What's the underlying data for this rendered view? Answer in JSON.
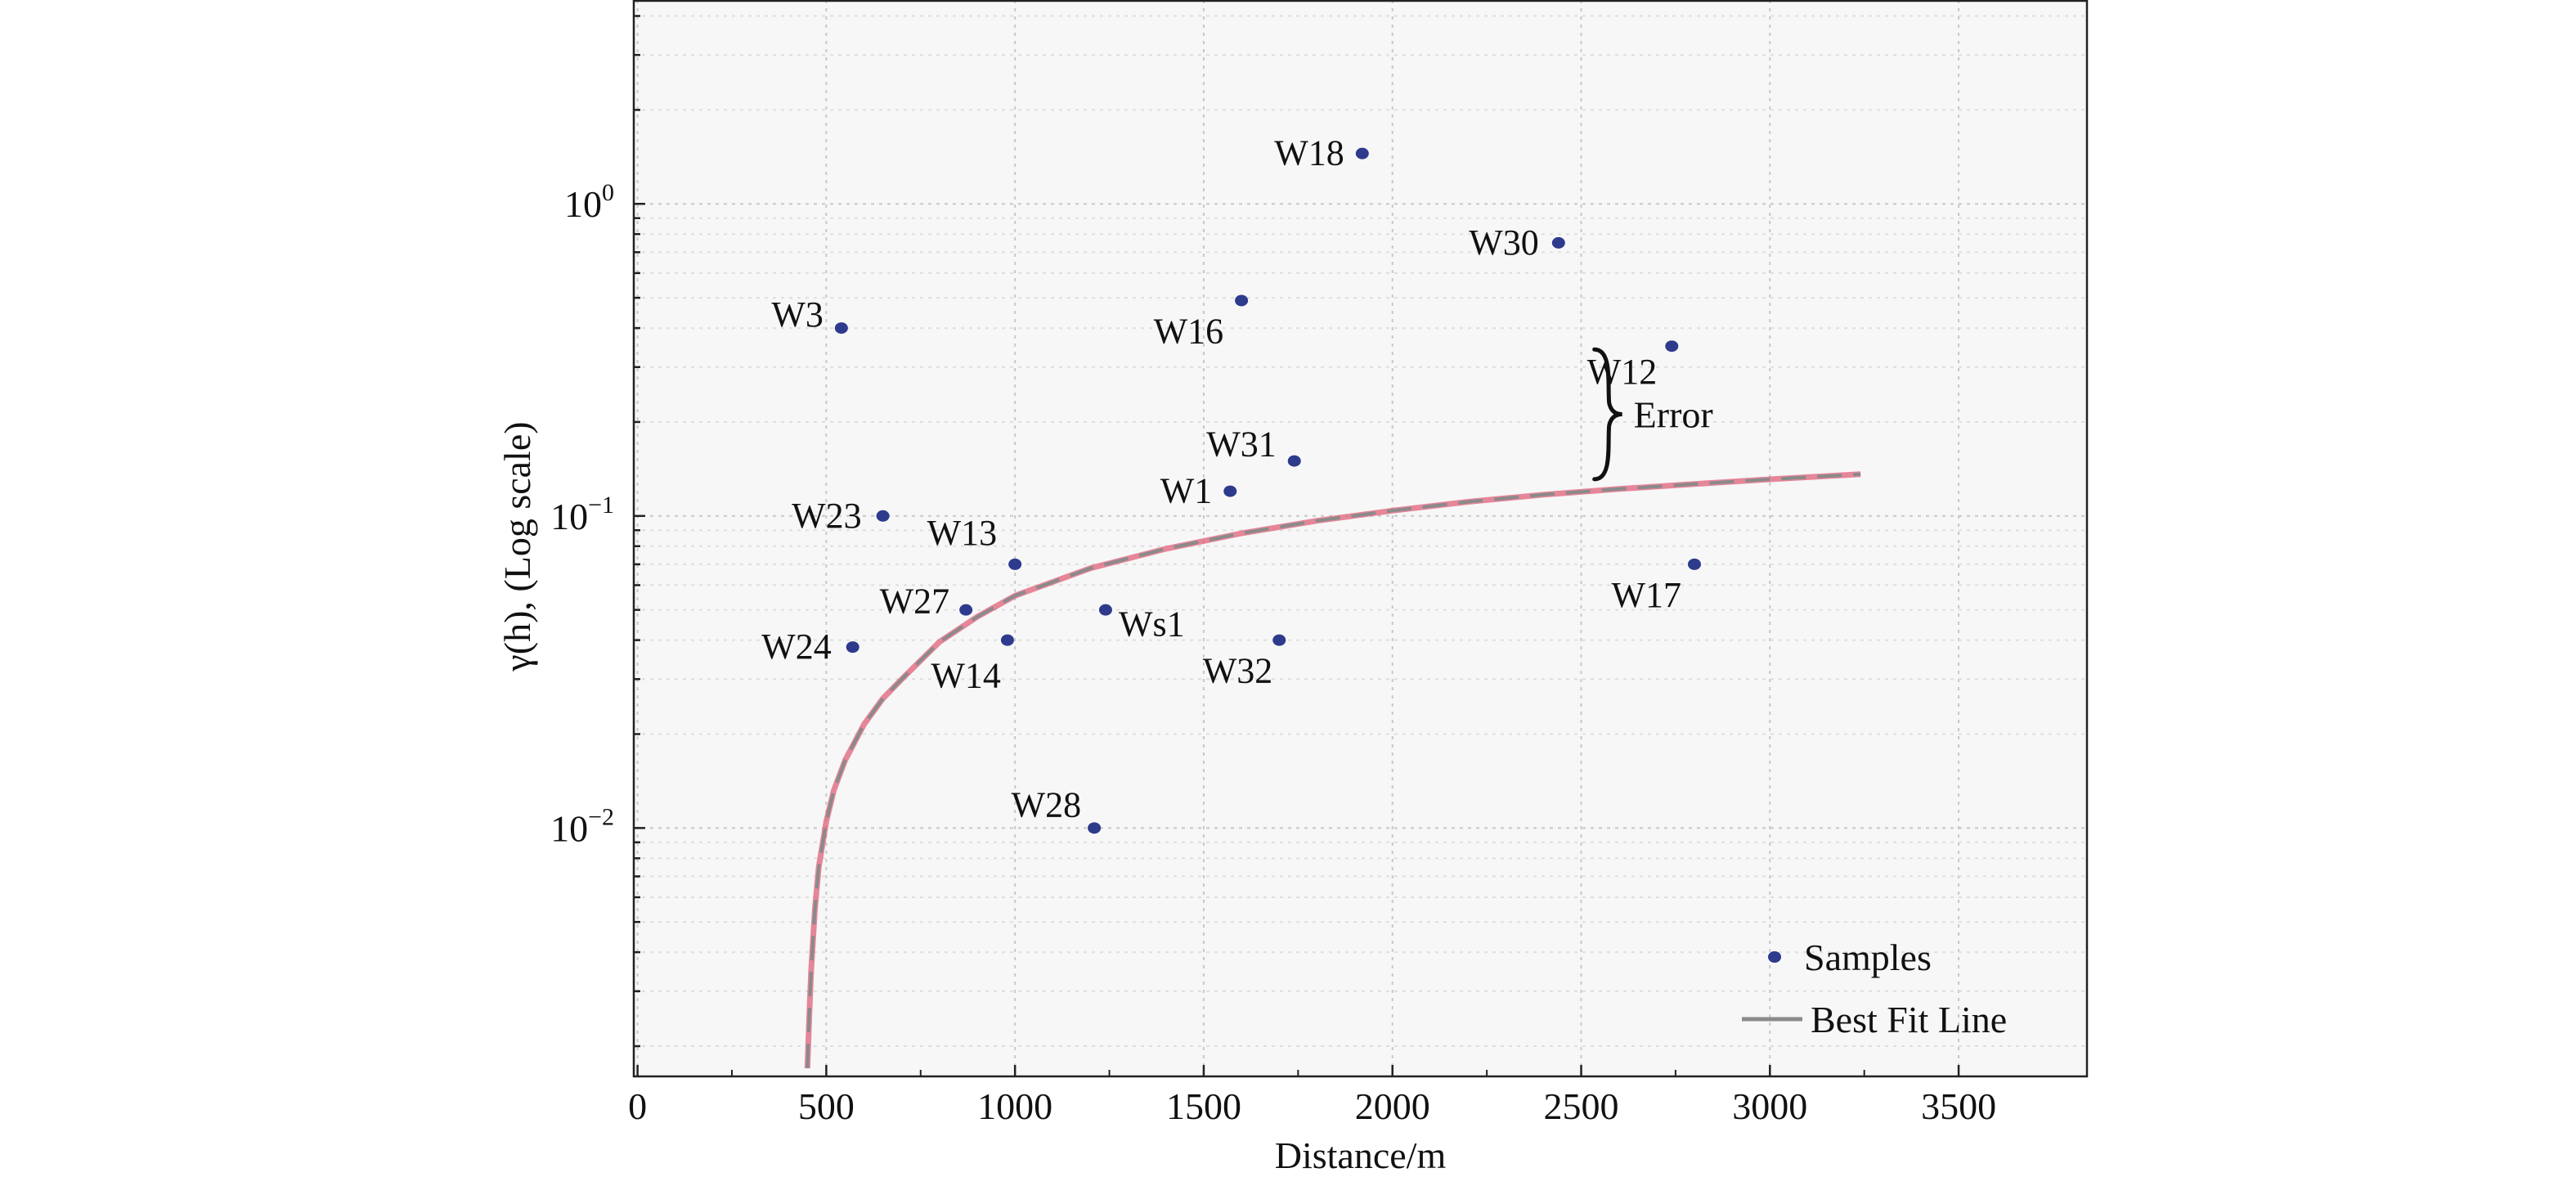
{
  "chart_data": {
    "type": "scatter",
    "xlabel": "Distance/m",
    "ylabel": "γ(h), (Log scale)",
    "xlim": [
      -10,
      3840
    ],
    "ylim": [
      0.0016,
      4.5
    ],
    "y_scale": "log",
    "x_ticks": [
      "0",
      "500",
      "1000",
      "1500",
      "2000",
      "2500",
      "3000",
      "3500"
    ],
    "x_tick_values": [
      0,
      500,
      1000,
      1500,
      2000,
      2500,
      3000,
      3500
    ],
    "y_ticks": [
      {
        "value": 1,
        "base": "10",
        "exp": "0"
      },
      {
        "value": 0.1,
        "base": "10",
        "exp": "−1"
      },
      {
        "value": 0.01,
        "base": "10",
        "exp": "−2"
      }
    ],
    "grid": true,
    "legend_position": "bottom-right",
    "series": [
      {
        "name": "Samples",
        "kind": "points",
        "color": "#2e3a8c",
        "points": [
          {
            "label": "W18",
            "x": 1920,
            "y": 1.45
          },
          {
            "label": "W30",
            "x": 2440,
            "y": 0.75
          },
          {
            "label": "W16",
            "x": 1600,
            "y": 0.49
          },
          {
            "label": "W3",
            "x": 540,
            "y": 0.4
          },
          {
            "label": "W12",
            "x": 2740,
            "y": 0.35
          },
          {
            "label": "W31",
            "x": 1740,
            "y": 0.15
          },
          {
            "label": "W1",
            "x": 1570,
            "y": 0.12
          },
          {
            "label": "W23",
            "x": 650,
            "y": 0.1
          },
          {
            "label": "W13",
            "x": 1000,
            "y": 0.07
          },
          {
            "label": "W17",
            "x": 2800,
            "y": 0.07
          },
          {
            "label": "W27",
            "x": 870,
            "y": 0.05
          },
          {
            "label": "Ws1",
            "x": 1240,
            "y": 0.05
          },
          {
            "label": "W14",
            "x": 980,
            "y": 0.04
          },
          {
            "label": "W32",
            "x": 1700,
            "y": 0.04
          },
          {
            "label": "W24",
            "x": 570,
            "y": 0.038
          },
          {
            "label": "W28",
            "x": 1210,
            "y": 0.01
          }
        ]
      },
      {
        "name": "Best Fit Line",
        "kind": "line",
        "color": "#8a8a8a",
        "highlight_color": "#e0607a",
        "x": [
          450,
          455,
          460,
          470,
          480,
          500,
          520,
          550,
          600,
          650,
          700,
          800,
          900,
          1000,
          1200,
          1400,
          1600,
          1800,
          2000,
          2200,
          2400,
          2600,
          2800,
          3000,
          3240
        ],
        "y": [
          0.0017,
          0.0025,
          0.0035,
          0.0055,
          0.0075,
          0.0105,
          0.0132,
          0.0165,
          0.0215,
          0.026,
          0.03,
          0.0395,
          0.0475,
          0.0555,
          0.068,
          0.0785,
          0.088,
          0.0965,
          0.104,
          0.111,
          0.117,
          0.122,
          0.1265,
          0.131,
          0.136
        ]
      }
    ],
    "annotations": [
      {
        "text": "Error",
        "x": 2860,
        "y_top": 0.35,
        "y_bottom": 0.128
      }
    ]
  }
}
